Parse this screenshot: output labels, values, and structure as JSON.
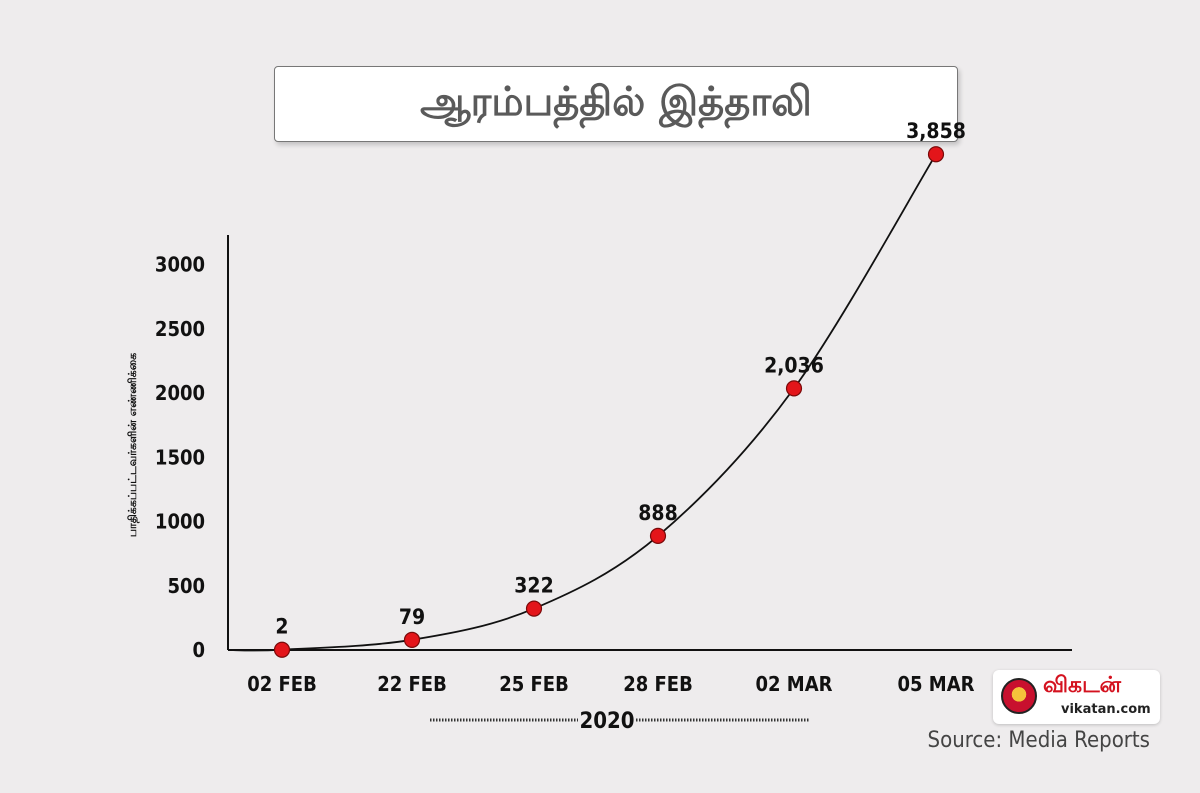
{
  "title": "ஆரம்பத்தில் இத்தாலி",
  "chart_data": {
    "type": "line",
    "title": "ஆரம்பத்தில் இத்தாலி",
    "categories": [
      "02 FEB",
      "22 FEB",
      "25 FEB",
      "28 FEB",
      "02 MAR",
      "05 MAR"
    ],
    "values": [
      2,
      79,
      322,
      888,
      2036,
      3858
    ],
    "value_labels": [
      "2",
      "79",
      "322",
      "888",
      "2,036",
      "3,858"
    ],
    "xlabel": "2020",
    "ylabel": "பாதிக்கப்பட்டவர்களின் எண்ணிக்கை",
    "yticks": [
      0,
      500,
      1000,
      1500,
      2000,
      2500,
      3000
    ],
    "ylim": [
      0,
      3858
    ],
    "grid": false,
    "legend": "none",
    "colors": {
      "line": "#111111",
      "marker": "#e3151a",
      "marker_edge": "#7a0a0a",
      "axis": "#111111"
    }
  },
  "brand": {
    "name": "விகடன்",
    "url": "vikatan.com"
  },
  "source": "Source: Media Reports"
}
